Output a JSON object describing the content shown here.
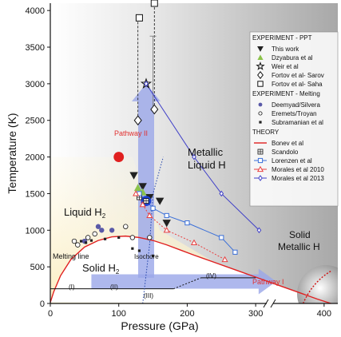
{
  "chart_data": {
    "type": "scatter",
    "xlabel": "Pressure (GPa)",
    "ylabel": "Temperature (K)",
    "xlim": [
      0,
      420
    ],
    "ylim": [
      0,
      4100
    ],
    "xticks": [
      "0",
      "100",
      "200",
      "300",
      "400"
    ],
    "yticks": [
      "0",
      "500",
      "1000",
      "1500",
      "2000",
      "2500",
      "3000",
      "3500",
      "4000"
    ],
    "grid": false,
    "legend_position": "top-right",
    "colors": {
      "this_work": "#222222",
      "dzyabura": "#8bc34a",
      "deemyad": "#5a5aa8",
      "bonev": "#e02020",
      "lorenzen": "#3a6fd8",
      "morales2010": "#e84040",
      "morales2013": "#4040c8",
      "arrow": "#9aa6e8",
      "liquid_fill": "#fbf1c9",
      "metallic_fill": "#b5b5b5"
    },
    "legend": {
      "experiment_ppt_header": "EXPERIMENT - PPT",
      "experiment_melting_header": "EXPERIMENT - Melting",
      "theory_header": "THEORY",
      "entries": {
        "this_work": "This work",
        "dzyabura": "Dzyabura et al",
        "weir": "Weir et al",
        "fortov_sarov": "Fortov et al- Sarov",
        "fortov_saha": "Fortov et al- Saha",
        "deemyad": "Deemyad/Silvera",
        "eremets": "Eremets/Troyan",
        "subramanian": "Subramanian et al",
        "bonev": "Bonev et al",
        "scandolo": "Scandolo",
        "lorenzen": "Lorenzen et al",
        "morales2010": "Morales et al 2010",
        "morales2013": "Morales et al 2013"
      }
    },
    "annotations": {
      "liquid_h2": "Liquid H",
      "liquid_h2_sub": "2",
      "solid_h2": "Solid H",
      "solid_h2_sub": "2",
      "metallic_liquid_1": "Metallic",
      "metallic_liquid_2": "Liquid H",
      "solid_metallic_1": "Solid",
      "solid_metallic_2": "Metallic H",
      "pathway_2": "Pathway II",
      "pathway_1": "Pathway I",
      "melting_line": "Melting line",
      "isochore": "Isochore",
      "phase_1": "(I)",
      "phase_2": "(II)",
      "phase_3": "(III)",
      "phase_4": "(IV)"
    },
    "series": [
      {
        "name": "This work",
        "marker": "triangle-down-filled",
        "points": [
          [
            122,
            1750
          ],
          [
            135,
            1600
          ],
          [
            145,
            1450
          ],
          [
            160,
            1400
          ],
          [
            170,
            1100
          ]
        ]
      },
      {
        "name": "This work",
        "marker": "circle-filled-red",
        "points": [
          [
            100,
            2000
          ]
        ]
      },
      {
        "name": "This work",
        "marker": "circle-filled-blue",
        "points": [
          [
            140,
            1400
          ]
        ]
      },
      {
        "name": "Dzyabura et al",
        "marker": "triangle-up-filled",
        "points": [
          [
            128,
            1580
          ],
          [
            135,
            1520
          ]
        ]
      },
      {
        "name": "Weir et al",
        "marker": "star-open",
        "points": [
          [
            140,
            3000
          ]
        ]
      },
      {
        "name": "Fortov et al- Sarov",
        "marker": "diamond-open",
        "points": [
          [
            128,
            2500
          ],
          [
            152,
            2650
          ]
        ]
      },
      {
        "name": "Fortov et al- Saha",
        "marker": "square-open",
        "points": [
          [
            130,
            3900
          ],
          [
            152,
            4100
          ]
        ]
      },
      {
        "name": "Deemyad/Silvera",
        "marker": "circle-filled",
        "points": [
          [
            50,
            850
          ],
          [
            70,
            1050
          ],
          [
            75,
            1000
          ],
          [
            90,
            1000
          ]
        ]
      },
      {
        "name": "Eremets/Troyan",
        "marker": "circle-open",
        "points": [
          [
            35,
            850
          ],
          [
            40,
            800
          ],
          [
            55,
            900
          ],
          [
            65,
            950
          ],
          [
            110,
            1050
          ],
          [
            120,
            900
          ],
          [
            145,
            900
          ]
        ]
      },
      {
        "name": "Subramanian et al",
        "marker": "small-square",
        "points": [
          [
            45,
            850
          ],
          [
            52,
            830
          ],
          [
            60,
            860
          ],
          [
            80,
            880
          ],
          [
            100,
            900
          ],
          [
            120,
            750
          ],
          [
            130,
            720
          ],
          [
            150,
            650
          ]
        ]
      },
      {
        "name": "Scandolo",
        "marker": "square-plus",
        "points": [
          [
            130,
            1450
          ],
          [
            140,
            1400
          ]
        ]
      },
      {
        "name": "Bonev et al",
        "marker": "line",
        "points": [
          [
            0,
            14
          ],
          [
            5,
            160
          ],
          [
            15,
            380
          ],
          [
            30,
            600
          ],
          [
            50,
            770
          ],
          [
            70,
            860
          ],
          [
            90,
            910
          ],
          [
            110,
            920
          ],
          [
            130,
            900
          ],
          [
            150,
            860
          ],
          [
            170,
            800
          ],
          [
            190,
            730
          ],
          [
            210,
            660
          ],
          [
            240,
            560
          ],
          [
            270,
            460
          ],
          [
            300,
            360
          ],
          [
            330,
            260
          ],
          [
            360,
            160
          ],
          [
            390,
            60
          ],
          [
            410,
            0
          ]
        ]
      },
      {
        "name": "Lorenzen et al",
        "marker": "square-open-line",
        "points": [
          [
            130,
            1500
          ],
          [
            150,
            1300
          ],
          [
            170,
            1200
          ],
          [
            200,
            1100
          ],
          [
            250,
            900
          ],
          [
            270,
            700
          ]
        ]
      },
      {
        "name": "Morales et al 2010",
        "marker": "triangle-open-line",
        "points": [
          [
            125,
            1500
          ],
          [
            135,
            1350
          ],
          [
            145,
            1200
          ],
          [
            170,
            1000
          ],
          [
            210,
            830
          ],
          [
            255,
            600
          ]
        ]
      },
      {
        "name": "Morales et al 2013",
        "marker": "diamond-open-line",
        "points": [
          [
            140,
            3000
          ],
          [
            210,
            2000
          ],
          [
            250,
            1500
          ],
          [
            305,
            1000
          ]
        ]
      }
    ],
    "error_bar": {
      "x": 150,
      "y": 3000,
      "ylow": 2650,
      "yhigh": 3650
    },
    "fortov_dashed": [
      {
        "x": 128,
        "from": 3900,
        "to": 2500
      },
      {
        "x": 152,
        "from": 4100,
        "to": 2650
      }
    ],
    "isochore": [
      [
        135,
        0
      ],
      [
        145,
        800
      ],
      [
        150,
        1500
      ],
      [
        165,
        2000
      ]
    ],
    "phase_lines": [
      {
        "from": [
          0,
          200
        ],
        "to": [
          180,
          200
        ]
      },
      {
        "from": [
          180,
          200
        ],
        "to": [
          220,
          350
        ],
        "dashed": true
      },
      {
        "from": [
          220,
          350
        ],
        "to": [
          300,
          350
        ]
      }
    ],
    "arrows": {
      "pathway_2": {
        "x": 140,
        "from_y": 350,
        "to_y": 3000
      },
      "pathway_1": {
        "y": 300,
        "from_x": 60,
        "to_x": 330
      }
    }
  }
}
